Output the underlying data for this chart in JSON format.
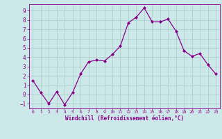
{
  "x": [
    0,
    1,
    2,
    3,
    4,
    5,
    6,
    7,
    8,
    9,
    10,
    11,
    12,
    13,
    14,
    15,
    16,
    17,
    18,
    19,
    20,
    21,
    22,
    23
  ],
  "y": [
    1.5,
    0.2,
    -1.0,
    0.3,
    -1.1,
    0.2,
    2.2,
    3.5,
    3.7,
    3.6,
    4.3,
    5.2,
    7.7,
    8.3,
    9.3,
    7.8,
    7.8,
    8.1,
    6.8,
    4.7,
    4.1,
    4.4,
    3.2,
    2.2
  ],
  "line_color": "#880088",
  "marker": "D",
  "marker_size": 2.0,
  "linewidth": 0.9,
  "bg_color": "#cce8e8",
  "grid_color": "#aacccc",
  "xlabel": "Windchill (Refroidissement éolien,°C)",
  "xlabel_color": "#880088",
  "tick_color": "#880088",
  "xlim": [
    -0.5,
    23.5
  ],
  "ylim": [
    -1.5,
    9.7
  ],
  "yticks": [
    -1,
    0,
    1,
    2,
    3,
    4,
    5,
    6,
    7,
    8,
    9
  ],
  "xticks": [
    0,
    1,
    2,
    3,
    4,
    5,
    6,
    7,
    8,
    9,
    10,
    11,
    12,
    13,
    14,
    15,
    16,
    17,
    18,
    19,
    20,
    21,
    22,
    23
  ]
}
